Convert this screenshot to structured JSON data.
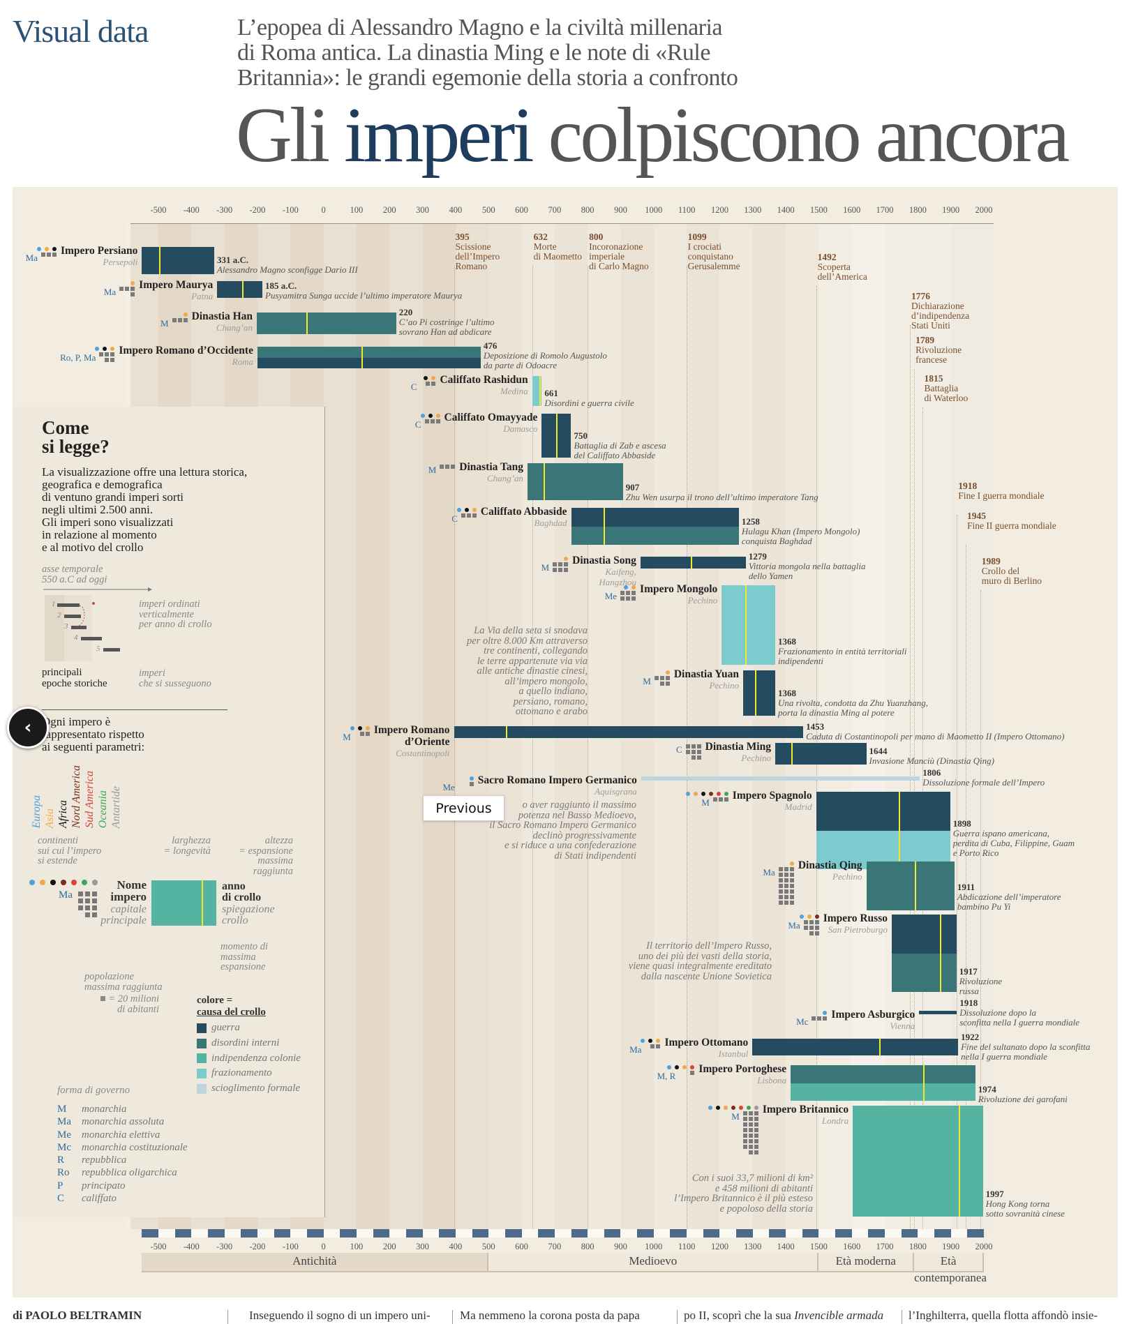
{
  "header": {
    "brand": "Visual data",
    "subtitle": "L’epopea di Alessandro Magno e la civiltà millenaria\ndi Roma antica. La dinastia Ming e le note di «Rule\nBritannia»: le grandi egemonie della storia a confronto",
    "title_pre": "Gli ",
    "title_highlight": "imperi",
    "title_post": " colpiscono ancora"
  },
  "colors": {
    "guerra": "#244b60",
    "disordini interni": "#3a7678",
    "indipendenza colonie": "#54b4a1",
    "frazionamento": "#7ecbcf",
    "scioglimento formale": "#bcd5de",
    "peak_line": "#f2ec28",
    "events_text": "#7b4f2d",
    "continents": {
      "Europa": "#4aa3df",
      "Asia": "#f0a84a",
      "Africa": "#111111",
      "Nord America": "#7a2d1f",
      "Sud America": "#d9433a",
      "Oceania": "#3da65a",
      "Antartide": "#999999"
    }
  },
  "chart_data": {
    "type": "bar",
    "subtype": "timeline",
    "x_unit": "anno",
    "xlim": [
      -550,
      2000
    ],
    "x_ticks": [
      "-500",
      "-400",
      "-300",
      "-200",
      "-100",
      "0",
      "100",
      "200",
      "300",
      "400",
      "500",
      "600",
      "700",
      "800",
      "900",
      "1000",
      "1100",
      "1200",
      "1300",
      "1400",
      "1500",
      "1600",
      "1700",
      "1800",
      "1900",
      "2000"
    ],
    "encoding": {
      "width": "longevità",
      "height": "espansione massima raggiunta (milioni di km², stimata)",
      "color": "causa del crollo",
      "yellow_line": "momento di massima espansione",
      "squares": "popolazione massima raggiunta (■ = 20 milioni di abitanti)"
    },
    "eras": [
      {
        "label": "Antichità",
        "start": -550,
        "end": 500
      },
      {
        "label": "Medioevo",
        "start": 500,
        "end": 1500
      },
      {
        "label": "Età moderna",
        "start": 1500,
        "end": 1789
      },
      {
        "label": "Età contemporanea",
        "start": 1789,
        "end": 2000
      }
    ],
    "events": [
      {
        "year": "395",
        "text": "Scissione\ndell’Impero\nRomano"
      },
      {
        "year": "632",
        "text": "Morte\ndi Maometto"
      },
      {
        "year": "800",
        "text": "Incoronazione\nimperiale\ndi Carlo Magno"
      },
      {
        "year": "1099",
        "text": "I crociati\nconquistano\nGerusalemme"
      },
      {
        "year": "1492",
        "text": "Scoperta\ndell’America"
      },
      {
        "year": "1776",
        "text": "Dichiarazione\nd’indipendenza\nStati Uniti"
      },
      {
        "year": "1789",
        "text": "Rivoluzione\nfrancese"
      },
      {
        "year": "1815",
        "text": "Battaglia\ndi Waterloo"
      },
      {
        "year": "1918",
        "text": "Fine I guerra mondiale"
      },
      {
        "year": "1945",
        "text": "Fine II guerra mondiale"
      },
      {
        "year": "1989",
        "text": "Crollo del\nmuro di Berlino"
      }
    ],
    "empires": [
      {
        "name": "Impero Persiano",
        "capital": "Persepoli",
        "government": "Ma",
        "continents": [
          "Europa",
          "Asia",
          "Africa"
        ],
        "population_units": 3,
        "start": -550,
        "end": -331,
        "peak_year": -495,
        "extent": 8.3,
        "causes": [
          "guerra"
        ],
        "end_label": "331 a.C.",
        "end_text": "Alessandro Magno sconfigge Dario III"
      },
      {
        "name": "Impero Maurya",
        "capital": "Patna",
        "government": "Ma",
        "continents": [
          "Asia"
        ],
        "population_units": 4,
        "start": -322,
        "end": -185,
        "peak_year": -245,
        "extent": 5.1,
        "causes": [
          "guerra"
        ],
        "end_label": "185 a.C.",
        "end_text": "Pusyamitra Sunga uccide l’ultimo imperatore Maurya"
      },
      {
        "name": "Dinastia Han",
        "capital": "Chang’an",
        "government": "M",
        "continents": [
          "Asia"
        ],
        "population_units": 3,
        "start": -202,
        "end": 220,
        "peak_year": -50,
        "extent": 6.6,
        "causes": [
          "disordini interni"
        ],
        "end_label": "220",
        "end_text": "C’ao Pi costringe l’ultimo\nsovrano Han ad abdicare"
      },
      {
        "name": "Impero Romano d’Occidente",
        "capital": "Roma",
        "government": "Ro, P, Ma",
        "continents": [
          "Europa",
          "Africa",
          "Asia"
        ],
        "population_units": 5,
        "start": -200,
        "end": 476,
        "peak_year": 117,
        "extent": 6.6,
        "causes": [
          "disordini interni",
          "guerra"
        ],
        "end_label": "476",
        "end_text": "Deposizione di Romolo Augustolo\nda parte di Odoacre"
      },
      {
        "name": "Califfato Rashidun",
        "capital": "Medina",
        "government": "C",
        "continents": [
          "Africa",
          "Asia"
        ],
        "population_units": 2,
        "start": 632,
        "end": 661,
        "peak_year": 655,
        "extent": 9.1,
        "causes": [
          "frazionamento"
        ],
        "end_label": "661",
        "end_text": "Disordini e guerra civile"
      },
      {
        "name": "Califfato Omayyade",
        "capital": "Damasco",
        "government": "C",
        "continents": [
          "Europa",
          "Africa",
          "Asia"
        ],
        "population_units": 3,
        "start": 661,
        "end": 750,
        "peak_year": 707,
        "extent": 13.4,
        "causes": [
          "guerra"
        ],
        "end_label": "750",
        "end_text": "Battaglia di Zab e ascesa\ndel Califfato Abbaside"
      },
      {
        "name": "Dinastia Tang",
        "capital": "Chang’an",
        "government": "M",
        "continents": [],
        "population_units": 3,
        "start": 618,
        "end": 907,
        "peak_year": 669,
        "extent": 11.2,
        "causes": [
          "disordini interni"
        ],
        "end_label": "907",
        "end_text": "Zhu Wen usurpa il trono dell’ultimo imperatore Tang"
      },
      {
        "name": "Califfato Abbaside",
        "capital": "Baghdad",
        "government": "C",
        "continents": [
          "Europa",
          "Africa",
          "Asia"
        ],
        "population_units": 3,
        "start": 750,
        "end": 1258,
        "peak_year": 850,
        "extent": 11.2,
        "causes": [
          "guerra",
          "disordini interni"
        ],
        "end_label": "1258",
        "end_text": "Hulagu Khan (Impero Mongolo)\nconquista Baghdad"
      },
      {
        "name": "Dinastia Song",
        "capital": "Kaifeng,\nHangzhou",
        "government": "M",
        "continents": [
          "Asia"
        ],
        "population_units": 6,
        "start": 960,
        "end": 1279,
        "peak_year": 1115,
        "extent": 3.6,
        "causes": [
          "guerra"
        ],
        "end_label": "1279",
        "end_text": "Vittoria mongola nella battaglia dello Yamen"
      },
      {
        "name": "Impero Mongolo",
        "capital": "Pechino",
        "government": "Me",
        "continents": [
          "Europa",
          "Asia"
        ],
        "population_units": 6,
        "start": 1206,
        "end": 1368,
        "peak_year": 1279,
        "extent": 24.2,
        "causes": [
          "frazionamento"
        ],
        "end_label": "1368",
        "end_text": "Frazionamento in entità territoriali\nindipendenti"
      },
      {
        "name": "Dinastia Yuan",
        "capital": "Pechino",
        "government": "M",
        "continents": [
          "Asia"
        ],
        "population_units": 5,
        "start": 1271,
        "end": 1368,
        "peak_year": 1310,
        "extent": 13.8,
        "causes": [
          "guerra"
        ],
        "end_label": "1368",
        "end_text": "Una rivolta, condotta da Zhu Yuanzhang,\nporta la dinastia Ming al potere"
      },
      {
        "name": "Impero Romano\nd’Oriente",
        "capital": "Costantinopoli",
        "government": "M",
        "continents": [
          "Europa",
          "Africa",
          "Asia"
        ],
        "population_units": 2,
        "start": 395,
        "end": 1453,
        "peak_year": 555,
        "extent": 3.6,
        "causes": [
          "guerra"
        ],
        "end_label": "1453",
        "end_text": "Caduta di Costantinopoli per mano di Maometto II (Impero Ottomano)"
      },
      {
        "name": "Dinastia Ming",
        "capital": "Pechino",
        "government": "C",
        "continents": [],
        "population_units": 8,
        "start": 1368,
        "end": 1644,
        "peak_year": 1418,
        "extent": 6.6,
        "causes": [
          "guerra"
        ],
        "end_label": "1644",
        "end_text": "Invasione Manciù (Dinastia Qing)"
      },
      {
        "name": "Sacro Romano Impero Germanico",
        "capital": "Aquisgrana",
        "government": "Me",
        "continents": [
          "Europa"
        ],
        "population_units": 1,
        "start": 962,
        "end": 1806,
        "peak_year": null,
        "extent": 1.3,
        "causes": [
          "scioglimento formale"
        ],
        "end_label": "1806",
        "end_text": "Dissoluzione formale dell’Impero"
      },
      {
        "name": "Impero Spagnolo",
        "capital": "Madrid",
        "government": "M",
        "continents": [
          "Europa",
          "Asia",
          "Africa",
          "Nord America",
          "Sud America",
          "Oceania"
        ],
        "population_units": 3,
        "start": 1492,
        "end": 1898,
        "peak_year": 1745,
        "extent": 23.5,
        "causes": [
          "guerra",
          "frazionamento"
        ],
        "end_label": "1898",
        "end_text": "Guerra ispano americana,\nperdita di Cuba, Filippine, Guam\ne Porto Rico"
      },
      {
        "name": "Dinastia Qing",
        "capital": "Pechino",
        "government": "Ma",
        "continents": [
          "Asia"
        ],
        "population_units": 21,
        "start": 1644,
        "end": 1911,
        "peak_year": 1793,
        "extent": 14.8,
        "causes": [
          "disordini interni"
        ],
        "end_label": "1911",
        "end_text": "Abdicazione dell’imperatore\nbambino Pu Yi"
      },
      {
        "name": "Impero Russo",
        "capital": "San Pietroburgo",
        "government": "Ma",
        "continents": [
          "Europa",
          "Asia",
          "Nord America"
        ],
        "population_units": 8,
        "start": 1721,
        "end": 1917,
        "peak_year": 1870,
        "extent": 23.5,
        "causes": [
          "guerra",
          "disordini interni"
        ],
        "end_label": "1917",
        "end_text": "Rivoluzione\nrussa"
      },
      {
        "name": "Impero Asburgico",
        "capital": "Vienna",
        "government": "Mc",
        "continents": [
          "Europa"
        ],
        "population_units": 3,
        "start": 1804,
        "end": 1918,
        "peak_year": null,
        "extent": 1.1,
        "causes": [
          "guerra"
        ],
        "end_label": "1918",
        "end_text": "Dissoluzione dopo la\nsconfitta nella I guerra mondiale"
      },
      {
        "name": "Impero Ottomano",
        "capital": "Istanbul",
        "government": "Ma",
        "continents": [
          "Europa",
          "Africa",
          "Asia"
        ],
        "population_units": 2,
        "start": 1299,
        "end": 1922,
        "peak_year": 1686,
        "extent": 5.1,
        "causes": [
          "guerra"
        ],
        "end_label": "1922",
        "end_text": "Fine del sultanato dopo la sconfitta\nnella I guerra mondiale"
      },
      {
        "name": "Impero Portoghese",
        "capital": "Lisbona",
        "government": "M, R",
        "continents": [
          "Europa",
          "Africa",
          "Asia",
          "Sud America"
        ],
        "population_units": 1,
        "start": 1415,
        "end": 1974,
        "peak_year": 1819,
        "extent": 10.8,
        "causes": [
          "disordini interni",
          "indipendenza colonie"
        ],
        "end_label": "1974",
        "end_text": "Rivoluzione dei garofani"
      },
      {
        "name": "Impero Britannico",
        "capital": "Londra",
        "government": "M",
        "continents": [
          "Europa",
          "Africa",
          "Asia",
          "Nord America",
          "Sud America",
          "Oceania",
          "Antartide"
        ],
        "population_units": 23,
        "start": 1603,
        "end": 1997,
        "peak_year": 1926,
        "extent": 33.7,
        "causes": [
          "indipendenza colonie"
        ],
        "end_label": "1997",
        "end_text": "Hong Kong torna\nsotto sovranità cinese"
      }
    ],
    "annotations": [
      "La Via della seta si snodava\nper oltre 8.000 Km attraverso\ntre continenti, collegando\nle terre appartenute via via\nalle antiche dinastie cinesi,\nall’impero mongolo,\na quello indiano,\npersiano, romano,\nottomano e arabo",
      "o aver raggiunto il massimo\npotenza nel Basso Medioevo,\nil Sacro Romano Impero Germanico\ndeclinò progressivamente\ne si riduce a una confederazione\ndi Stati indipendenti",
      "Il territorio dell’Impero Russo,\nuno dei più dei vasti della storia,\nviene quasi integralmente ereditato\ndalla nascente Unione Sovietica",
      "Con i suoi 33,7 milioni di km²\ne 458 milioni  di abitanti\nl’Impero Britannico è il più esteso\ne popoloso della storia"
    ]
  },
  "legend": {
    "heading": "Come\nsi legge?",
    "intro": "La visualizzazione offre una lettura storica,\ngeografica e demografica\ndi ventuno grandi imperi sorti\nnegli ultimi 2.500 anni.\nGli imperi sono visualizzati\nin relazione al momento\ne al motivo del crollo",
    "axis_label": "asse temporale\n550 a.C ad oggi",
    "ordered_label": "imperi ordinati\nverticalmente\nper anno di crollo",
    "epochs_label": "principali\nepoche storiche",
    "succession_label": "imperi\nche si susseguono",
    "mini_numbers": [
      "1",
      "2",
      "3",
      "4",
      "5"
    ],
    "params_intro": "Ogni impero è\nrappresentato rispetto\nai seguenti parametri:",
    "continents": [
      "Europa",
      "Asia",
      "Africa",
      "Nord America",
      "Sud America",
      "Oceania",
      "Antartide"
    ],
    "continents_label": "continenti\nsui cui l’impero\nsi estende",
    "width_label": "larghezza\n= longevità",
    "height_label": "altezza\n= espansione\nmassima\nraggiunta",
    "example_gov": "Ma",
    "example_name": "Nome\nimpero",
    "example_capital": "capitale\nprincipale",
    "example_end": "anno\ndi crollo",
    "example_end_text": "spiegazione\ncrollo",
    "peak_label": "momento di\nmassima\nespansione",
    "population_label": "popolazione\nmassima raggiunta",
    "population_unit": "■ = 20 milioni\ndi abitanti",
    "color_label": "colore =",
    "cause_label": "causa del crollo",
    "causes": [
      "guerra",
      "disordini interni",
      "indipendenza colonie",
      "frazionamento",
      "scioglimento formale"
    ],
    "government_label": "forma di governo",
    "governments": [
      {
        "abbr": "M",
        "label": "monarchia"
      },
      {
        "abbr": "Ma",
        "label": "monarchia assoluta"
      },
      {
        "abbr": "Me",
        "label": "monarchia elettiva"
      },
      {
        "abbr": "Mc",
        "label": "monarchia costituzionale"
      },
      {
        "abbr": "R",
        "label": "repubblica"
      },
      {
        "abbr": "Ro",
        "label": "repubblica oligarchica"
      },
      {
        "abbr": "P",
        "label": "principato"
      },
      {
        "abbr": "C",
        "label": "califfato"
      }
    ]
  },
  "overlay": {
    "previous_label": "Previous",
    "back_icon": "chevron-left-icon"
  },
  "footer": {
    "byline": "di PAOLO BELTRAMIN",
    "col1": "Inseguendo il sogno di un impero uni-",
    "col2": "Ma nemmeno la corona posta da papa",
    "col3_pre": "po II, scoprì che la sua ",
    "col3_it": "Invencible armada",
    "col4": "l’Inghilterra, quella flotta affondò insie-"
  }
}
